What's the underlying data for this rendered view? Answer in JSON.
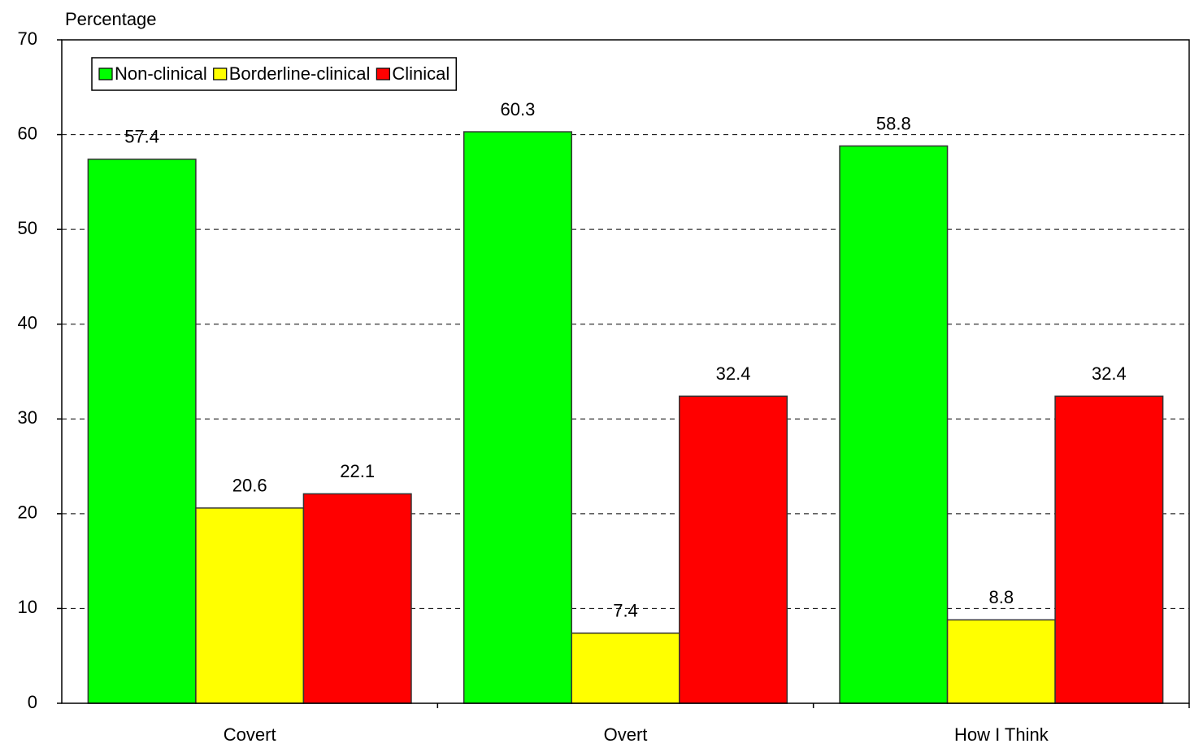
{
  "chart_data": {
    "type": "bar",
    "y_label": "Percentage",
    "categories": [
      "Covert",
      "Overt",
      "How I Think"
    ],
    "series": [
      {
        "name": "Non-clinical",
        "color": "#00ff00",
        "values": [
          57.4,
          60.3,
          58.8
        ]
      },
      {
        "name": "Borderline-clinical",
        "color": "#ffff00",
        "values": [
          20.6,
          7.4,
          8.8
        ]
      },
      {
        "name": "Clinical",
        "color": "#ff0000",
        "values": [
          22.1,
          32.4,
          32.4
        ]
      }
    ],
    "ylim": [
      0,
      70
    ],
    "yticks": [
      0,
      10,
      20,
      30,
      40,
      50,
      60,
      70
    ],
    "grid": true,
    "legend": "top-left"
  }
}
